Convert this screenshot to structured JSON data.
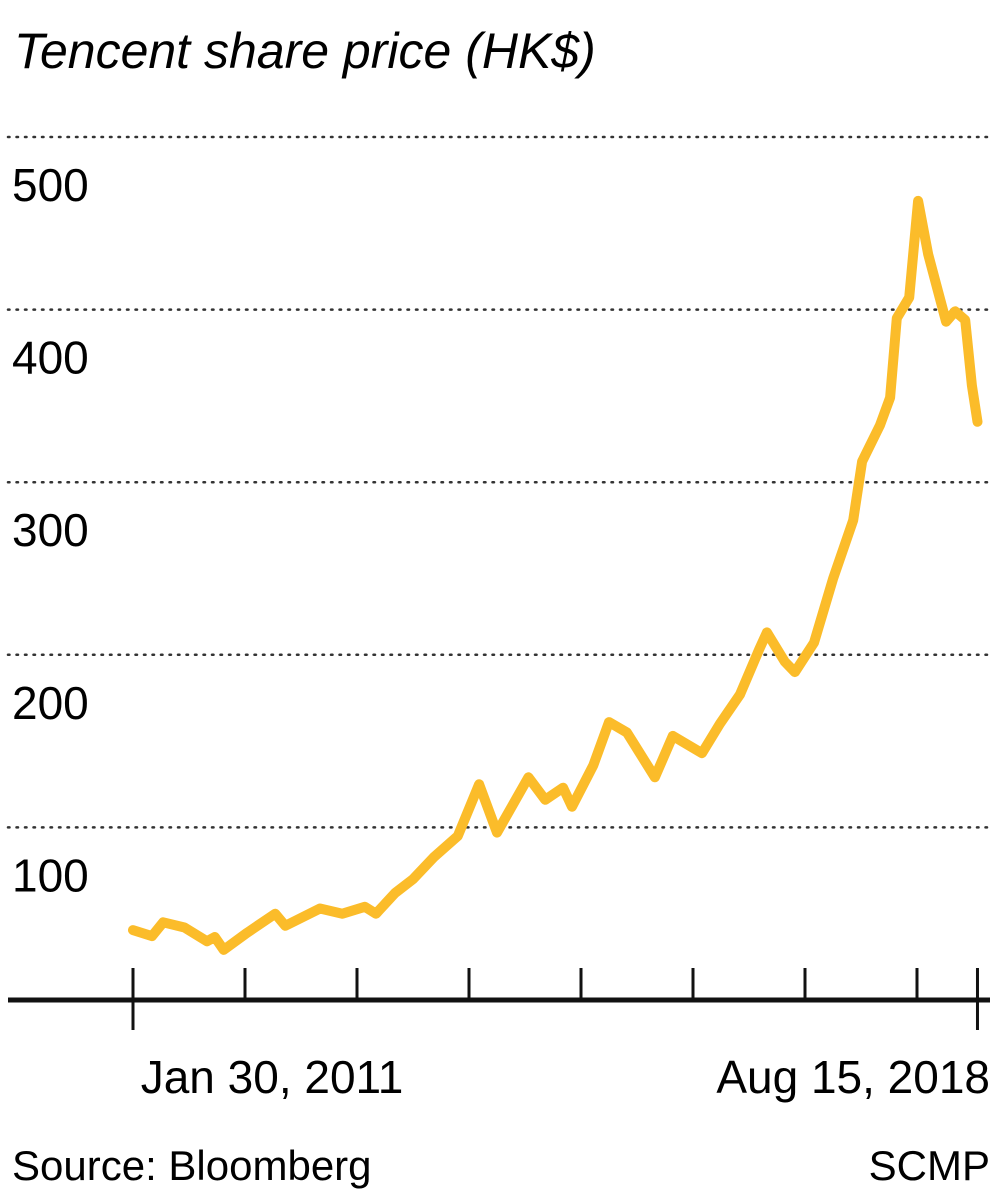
{
  "chart_data": {
    "type": "line",
    "title": "Tencent share price (HK$)",
    "xlabel": "",
    "ylabel": "HK$",
    "ylim": [
      0,
      500
    ],
    "xlim": [
      2011.08,
      2018.62
    ],
    "grid": true,
    "y_ticks": [
      100,
      200,
      300,
      400,
      500
    ],
    "y_tick_labels": [
      "100",
      "200",
      "300",
      "400",
      "500"
    ],
    "x_ticks": [
      2011.08,
      2012.08,
      2013.08,
      2014.08,
      2015.08,
      2016.08,
      2017.08,
      2018.08,
      2018.62
    ],
    "x_tick_labels": {
      "start": "Jan 30, 2011",
      "end": "Aug 15, 2018"
    },
    "series": [
      {
        "name": "Tencent share price",
        "color": "#FBBC2A",
        "x": [
          2011.08,
          2011.25,
          2011.35,
          2011.54,
          2011.74,
          2011.81,
          2011.89,
          2012.1,
          2012.35,
          2012.44,
          2012.75,
          2012.95,
          2013.15,
          2013.25,
          2013.42,
          2013.58,
          2013.77,
          2013.98,
          2014.17,
          2014.33,
          2014.61,
          2014.76,
          2014.92,
          2015.0,
          2015.19,
          2015.33,
          2015.49,
          2015.74,
          2015.9,
          2016.16,
          2016.32,
          2016.5,
          2016.67,
          2016.74,
          2016.9,
          2016.99,
          2017.16,
          2017.33,
          2017.51,
          2017.59,
          2017.75,
          2017.84,
          2017.9,
          2018.01,
          2018.09,
          2018.18,
          2018.34,
          2018.42,
          2018.51,
          2018.57,
          2018.62
        ],
        "values": [
          40.5,
          37,
          45,
          42,
          34,
          36.5,
          29,
          39,
          50,
          43,
          53,
          50,
          54,
          50,
          62,
          70,
          83,
          95,
          125,
          97,
          129,
          116,
          123,
          112,
          136,
          161,
          155,
          129,
          153,
          143,
          160,
          177,
          203,
          213,
          196,
          190,
          207,
          244,
          278,
          312,
          333,
          349,
          395,
          407,
          463,
          432,
          393,
          399,
          394,
          356,
          335
        ]
      }
    ],
    "source": "Source: Bloomberg",
    "credit": "SCMP"
  }
}
